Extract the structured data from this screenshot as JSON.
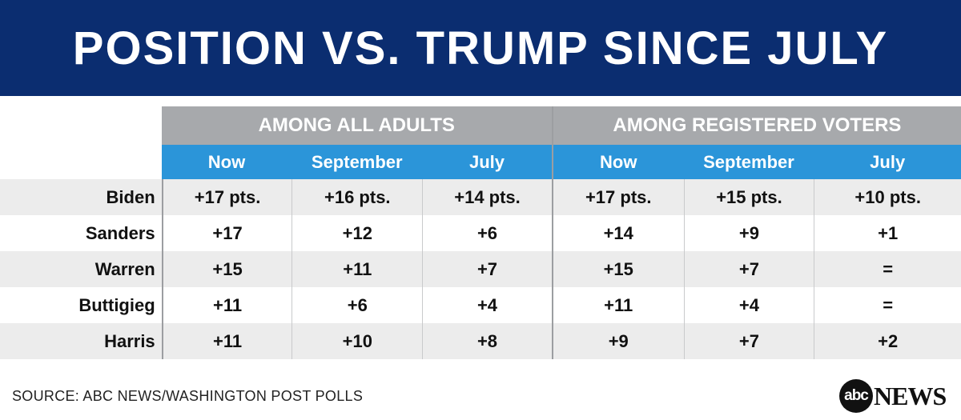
{
  "title": "POSITION VS. TRUMP SINCE JULY",
  "chart_data": {
    "type": "table",
    "groups": [
      "AMONG ALL ADULTS",
      "AMONG REGISTERED VOTERS"
    ],
    "columns": [
      "Now",
      "September",
      "July",
      "Now",
      "September",
      "July"
    ],
    "rows": [
      {
        "name": "Biden",
        "values": [
          "+17 pts.",
          "+16 pts.",
          "+14 pts.",
          "+17 pts.",
          "+15 pts.",
          "+10 pts."
        ]
      },
      {
        "name": "Sanders",
        "values": [
          "+17",
          "+12",
          "+6",
          "+14",
          "+9",
          "+1"
        ]
      },
      {
        "name": "Warren",
        "values": [
          "+15",
          "+11",
          "+7",
          "+15",
          "+7",
          "="
        ]
      },
      {
        "name": "Buttigieg",
        "values": [
          "+11",
          "+6",
          "+4",
          "+11",
          "+4",
          "="
        ]
      },
      {
        "name": "Harris",
        "values": [
          "+11",
          "+10",
          "+8",
          "+9",
          "+7",
          "+2"
        ]
      }
    ]
  },
  "source": "SOURCE: ABC NEWS/WASHINGTON POST POLLS",
  "logo": {
    "circle": "abc",
    "text": "NEWS"
  },
  "colors": {
    "banner": "#0b2d70",
    "group_header": "#a7a9ac",
    "sub_header": "#2b95d9",
    "shaded_row": "#ececec"
  }
}
